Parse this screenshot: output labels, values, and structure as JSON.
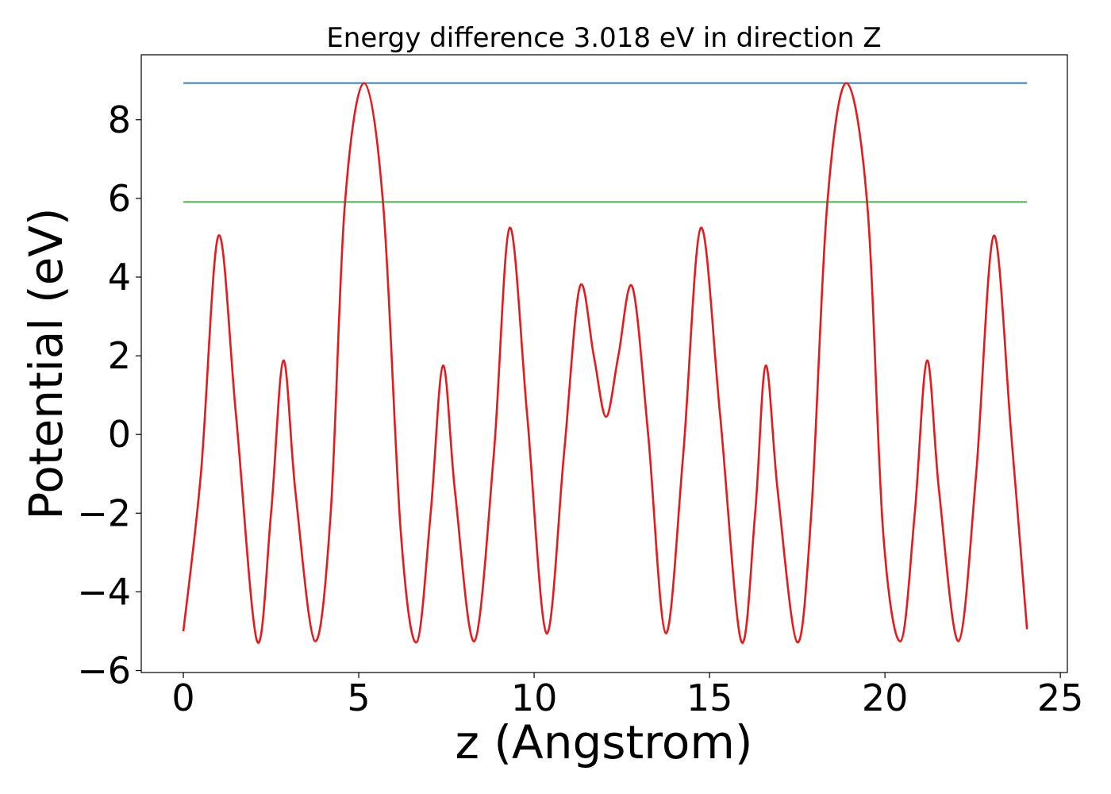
{
  "chart_data": {
    "type": "line",
    "title": "Energy difference 3.018 eV in direction Z",
    "xlabel": "z (Angstrom)",
    "ylabel": "Potential (eV)",
    "xlim": [
      -1.2,
      25.2
    ],
    "ylim": [
      -6.05,
      9.65
    ],
    "xticks": [
      0,
      5,
      10,
      15,
      20,
      25
    ],
    "xtick_labels": [
      "0",
      "5",
      "10",
      "15",
      "20",
      "25"
    ],
    "yticks": [
      -6,
      -4,
      -2,
      0,
      2,
      4,
      6,
      8
    ],
    "ytick_labels": [
      "−6",
      "−4",
      "−2",
      "0",
      "2",
      "4",
      "6",
      "8"
    ],
    "grid": false,
    "legend": "none",
    "series": [
      {
        "color": "#e41a1c",
        "x": [
          0,
          0.5,
          1,
          1.5,
          2.1,
          2.5,
          2.85,
          3.2,
          3.75,
          4.2,
          4.6,
          5.15,
          5.7,
          6.2,
          6.65,
          7.05,
          7.4,
          7.75,
          8.3,
          8.85,
          9.3,
          9.8,
          10.35,
          10.85,
          11.3,
          11.7,
          12.05,
          12.4,
          12.8,
          13.25,
          13.75,
          14.25,
          14.75,
          15.3,
          15.9,
          16.3,
          16.6,
          16.95,
          17.5,
          17.9,
          18.35,
          18.9,
          19.5,
          19.95,
          20.45,
          20.85,
          21.2,
          21.55,
          22.1,
          22.6,
          23.1,
          23.6,
          24.05
        ],
        "y": [
          -5.0,
          -1.0,
          5.05,
          0.5,
          -5.25,
          -2.0,
          1.88,
          -1.5,
          -5.25,
          -2.0,
          5.8,
          8.93,
          5.8,
          -2.5,
          -5.28,
          -2.0,
          1.75,
          -1.5,
          -5.25,
          -0.5,
          5.25,
          0.5,
          -5.05,
          -0.5,
          3.75,
          2.0,
          0.45,
          2.0,
          3.75,
          0.0,
          -5.05,
          -0.5,
          5.25,
          0.5,
          -5.25,
          -2.0,
          1.75,
          -1.5,
          -5.28,
          -2.0,
          5.8,
          8.93,
          5.8,
          -2.5,
          -5.25,
          -2.0,
          1.88,
          -1.5,
          -5.25,
          -1.0,
          5.05,
          0.0,
          -4.95
        ]
      },
      {
        "color": "#377eb8",
        "x": [
          0,
          24.05
        ],
        "y": [
          8.93,
          8.93
        ]
      },
      {
        "color": "#4daf4a",
        "x": [
          0,
          24.05
        ],
        "y": [
          5.91,
          5.91
        ]
      }
    ]
  }
}
